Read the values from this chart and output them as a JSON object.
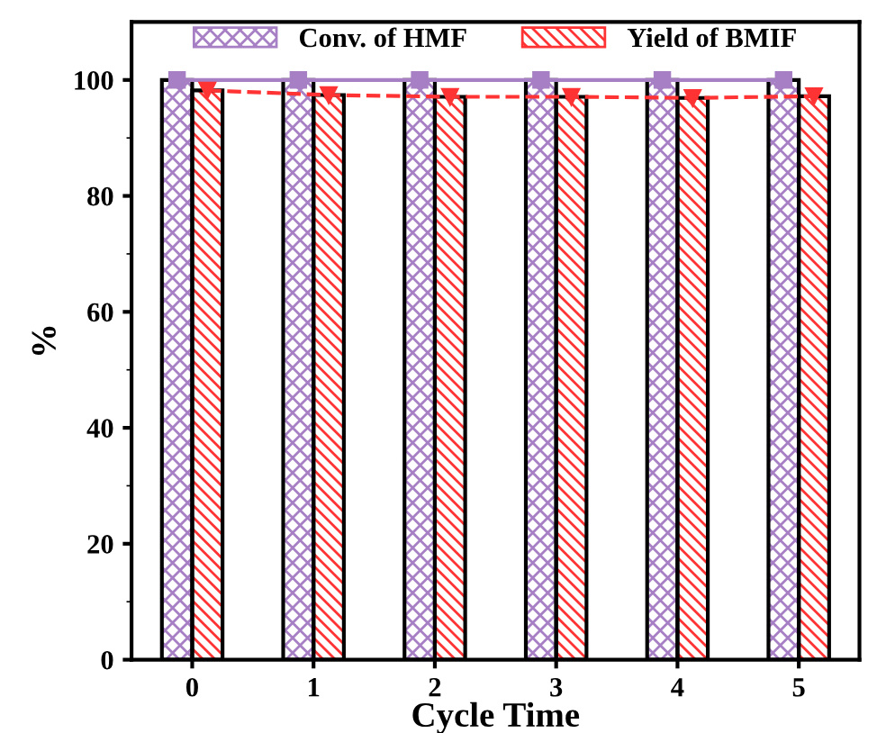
{
  "chart_data": {
    "type": "bar",
    "xlabel": "Cycle Time",
    "ylabel": "%",
    "categories": [
      "0",
      "1",
      "2",
      "3",
      "4",
      "5"
    ],
    "series": [
      {
        "name": "Conv. of HMF",
        "color": "#a77fc4",
        "values": [
          100,
          100,
          100,
          100,
          100,
          100
        ]
      },
      {
        "name": "Yield of BMIF",
        "color": "#ff3333",
        "values": [
          98.2,
          97.4,
          97.1,
          97.1,
          96.9,
          97.2
        ]
      },
      {
        "type": "line",
        "color": "#a77fc4",
        "marker": "square",
        "line_style": "solid",
        "values": [
          100,
          100,
          100,
          100,
          100,
          100
        ]
      },
      {
        "type": "line",
        "color": "#ff3333",
        "marker": "triangle",
        "line_style": "dashed",
        "values": [
          98.2,
          97.4,
          97.1,
          97.1,
          96.9,
          97.2
        ]
      }
    ],
    "ylim": [
      0,
      110
    ],
    "yticks": [
      0,
      20,
      40,
      60,
      80,
      100
    ],
    "grid": false,
    "legend": "top"
  }
}
